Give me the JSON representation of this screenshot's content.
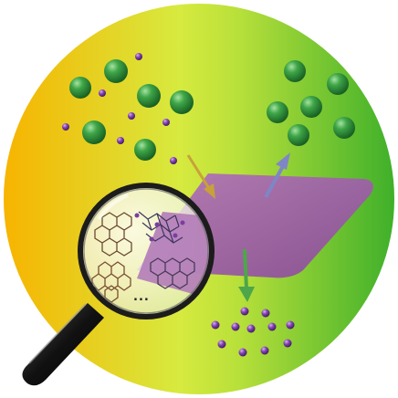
{
  "colors": {
    "background_left": "#f7b400",
    "background_center": "#d9ea3a",
    "background_right": "#45b52b",
    "membrane": "#9b5aa6",
    "large_atom": "#2f8f3a",
    "small_atom": "#7a3ea2",
    "arrow_in": "#c8a13a",
    "arrow_out_top": "#7f86c6",
    "arrow_out_bottom": "#4ea64a",
    "magnifier_handle": "#1a1a1a"
  },
  "icons": [
    "magnifying-glass-icon",
    "atom-icon",
    "arrow-icon",
    "membrane-sheet",
    "lattice-structure"
  ],
  "magnifier": {
    "ellipsis": "..."
  }
}
